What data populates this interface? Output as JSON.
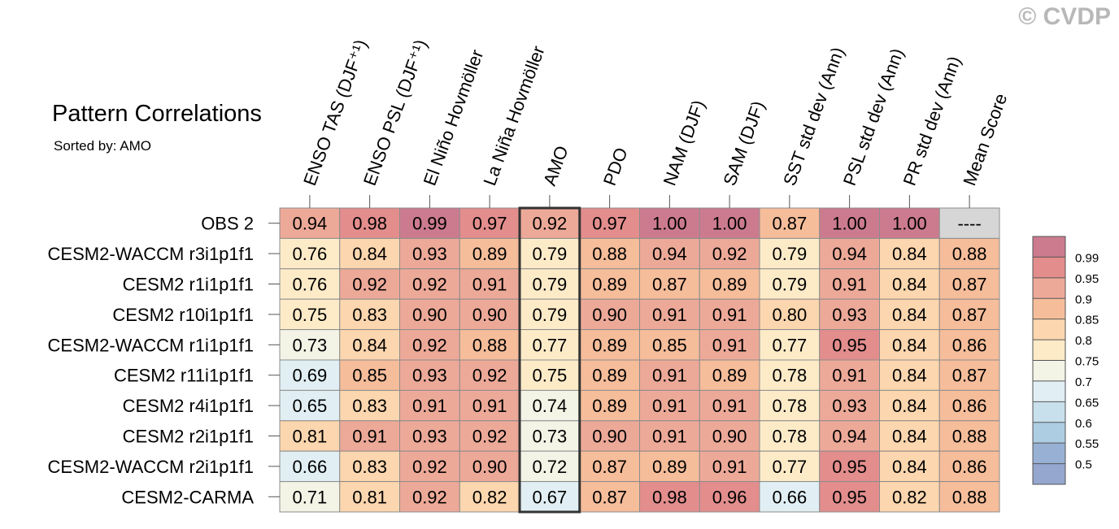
{
  "copyright": "© CVDP",
  "chart_data": {
    "type": "heatmap",
    "title": "Pattern Correlations",
    "subtitle": "Sorted by: AMO",
    "columns": [
      "ENSO TAS (DJF⁺¹)",
      "ENSO PSL (DJF⁺¹)",
      "El Niño Hovmöller",
      "La Niña Hovmöller",
      "AMO",
      "PDO",
      "NAM (DJF)",
      "SAM (DJF)",
      "SST std dev (Ann)",
      "PSL std dev (Ann)",
      "PR std dev (Ann)",
      "Mean Score"
    ],
    "highlight_column": "AMO",
    "rows": [
      {
        "name": "OBS 2",
        "values": [
          0.94,
          0.98,
          0.99,
          0.97,
          0.92,
          0.97,
          1.0,
          1.0,
          0.87,
          1.0,
          1.0,
          null
        ],
        "labels": [
          "0.94",
          "0.98",
          "0.99",
          "0.97",
          "0.92",
          "0.97",
          "1.00",
          "1.00",
          "0.87",
          "1.00",
          "1.00",
          "----"
        ]
      },
      {
        "name": "CESM2-WACCM r3i1p1f1",
        "values": [
          0.76,
          0.84,
          0.93,
          0.89,
          0.79,
          0.88,
          0.94,
          0.92,
          0.79,
          0.94,
          0.84,
          0.88
        ],
        "labels": [
          "0.76",
          "0.84",
          "0.93",
          "0.89",
          "0.79",
          "0.88",
          "0.94",
          "0.92",
          "0.79",
          "0.94",
          "0.84",
          "0.88"
        ]
      },
      {
        "name": "CESM2 r1i1p1f1",
        "values": [
          0.76,
          0.92,
          0.92,
          0.91,
          0.79,
          0.89,
          0.87,
          0.89,
          0.79,
          0.91,
          0.84,
          0.87
        ],
        "labels": [
          "0.76",
          "0.92",
          "0.92",
          "0.91",
          "0.79",
          "0.89",
          "0.87",
          "0.89",
          "0.79",
          "0.91",
          "0.84",
          "0.87"
        ]
      },
      {
        "name": "CESM2 r10i1p1f1",
        "values": [
          0.75,
          0.83,
          0.9,
          0.9,
          0.79,
          0.9,
          0.91,
          0.91,
          0.8,
          0.93,
          0.84,
          0.87
        ],
        "labels": [
          "0.75",
          "0.83",
          "0.90",
          "0.90",
          "0.79",
          "0.90",
          "0.91",
          "0.91",
          "0.80",
          "0.93",
          "0.84",
          "0.87"
        ]
      },
      {
        "name": "CESM2-WACCM r1i1p1f1",
        "values": [
          0.73,
          0.84,
          0.92,
          0.88,
          0.77,
          0.89,
          0.85,
          0.91,
          0.77,
          0.95,
          0.84,
          0.86
        ],
        "labels": [
          "0.73",
          "0.84",
          "0.92",
          "0.88",
          "0.77",
          "0.89",
          "0.85",
          "0.91",
          "0.77",
          "0.95",
          "0.84",
          "0.86"
        ]
      },
      {
        "name": "CESM2 r11i1p1f1",
        "values": [
          0.69,
          0.85,
          0.93,
          0.92,
          0.75,
          0.89,
          0.91,
          0.89,
          0.78,
          0.91,
          0.84,
          0.87
        ],
        "labels": [
          "0.69",
          "0.85",
          "0.93",
          "0.92",
          "0.75",
          "0.89",
          "0.91",
          "0.89",
          "0.78",
          "0.91",
          "0.84",
          "0.87"
        ]
      },
      {
        "name": "CESM2 r4i1p1f1",
        "values": [
          0.65,
          0.83,
          0.91,
          0.91,
          0.74,
          0.89,
          0.91,
          0.91,
          0.78,
          0.93,
          0.84,
          0.86
        ],
        "labels": [
          "0.65",
          "0.83",
          "0.91",
          "0.91",
          "0.74",
          "0.89",
          "0.91",
          "0.91",
          "0.78",
          "0.93",
          "0.84",
          "0.86"
        ]
      },
      {
        "name": "CESM2 r2i1p1f1",
        "values": [
          0.81,
          0.91,
          0.93,
          0.92,
          0.73,
          0.9,
          0.91,
          0.9,
          0.78,
          0.94,
          0.84,
          0.88
        ],
        "labels": [
          "0.81",
          "0.91",
          "0.93",
          "0.92",
          "0.73",
          "0.90",
          "0.91",
          "0.90",
          "0.78",
          "0.94",
          "0.84",
          "0.88"
        ]
      },
      {
        "name": "CESM2-WACCM r2i1p1f1",
        "values": [
          0.66,
          0.83,
          0.92,
          0.9,
          0.72,
          0.87,
          0.89,
          0.91,
          0.77,
          0.95,
          0.84,
          0.86
        ],
        "labels": [
          "0.66",
          "0.83",
          "0.92",
          "0.90",
          "0.72",
          "0.87",
          "0.89",
          "0.91",
          "0.77",
          "0.95",
          "0.84",
          "0.86"
        ]
      },
      {
        "name": "CESM2-CARMA",
        "values": [
          0.71,
          0.81,
          0.92,
          0.82,
          0.67,
          0.87,
          0.98,
          0.96,
          0.66,
          0.95,
          0.82,
          0.88
        ],
        "labels": [
          "0.71",
          "0.81",
          "0.92",
          "0.82",
          "0.67",
          "0.87",
          "0.98",
          "0.96",
          "0.66",
          "0.95",
          "0.82",
          "0.88"
        ]
      }
    ],
    "missing_color": "#d6d6d6",
    "colorbar": {
      "levels": [
        "0.99",
        "0.95",
        "0.9",
        "0.85",
        "0.8",
        "0.75",
        "0.7",
        "0.65",
        "0.6",
        "0.55",
        "0.5"
      ],
      "thresholds": [
        0.99,
        0.95,
        0.9,
        0.85,
        0.8,
        0.75,
        0.7,
        0.65,
        0.6,
        0.55,
        0.5
      ],
      "colors": [
        "#cc7b8e",
        "#e38d8d",
        "#eda998",
        "#f6bd9a",
        "#fcd6ae",
        "#fdebc8",
        "#f3f3e6",
        "#e1eff4",
        "#c8e0ec",
        "#adcde2",
        "#98b0d4",
        "#95a6cf"
      ]
    }
  }
}
